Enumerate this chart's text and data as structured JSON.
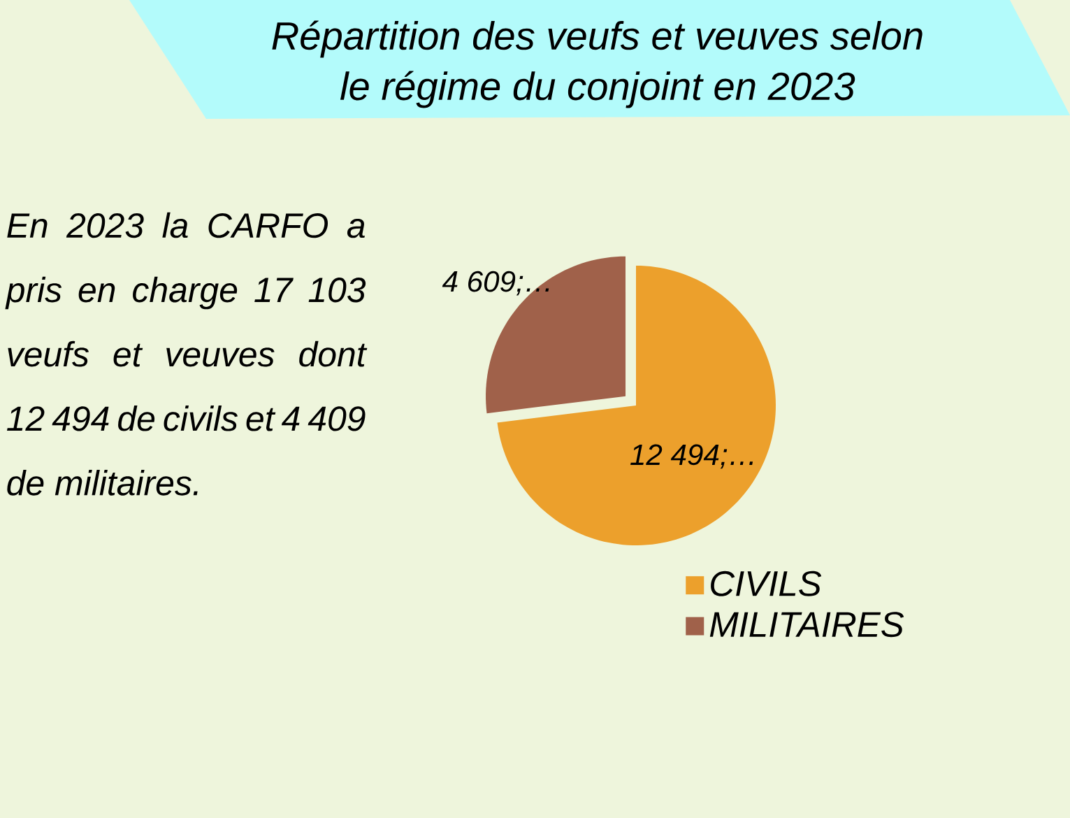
{
  "chart_data": {
    "type": "pie",
    "title": "Répartition des veufs et veuves selon le régime du conjoint en 2023",
    "categories": [
      "CIVILS",
      "MILITAIRES"
    ],
    "values": [
      12494,
      4609
    ],
    "colors": [
      "#eca02c",
      "#a0614a"
    ],
    "value_labels": [
      "12 494;…",
      "4 609;…"
    ],
    "legend": "bottom",
    "annotations": [
      "En 2023 la CARFO a pris en charge 17 103 veufs et veuves dont 12 494 de civils et 4 409 de militaires."
    ]
  }
}
